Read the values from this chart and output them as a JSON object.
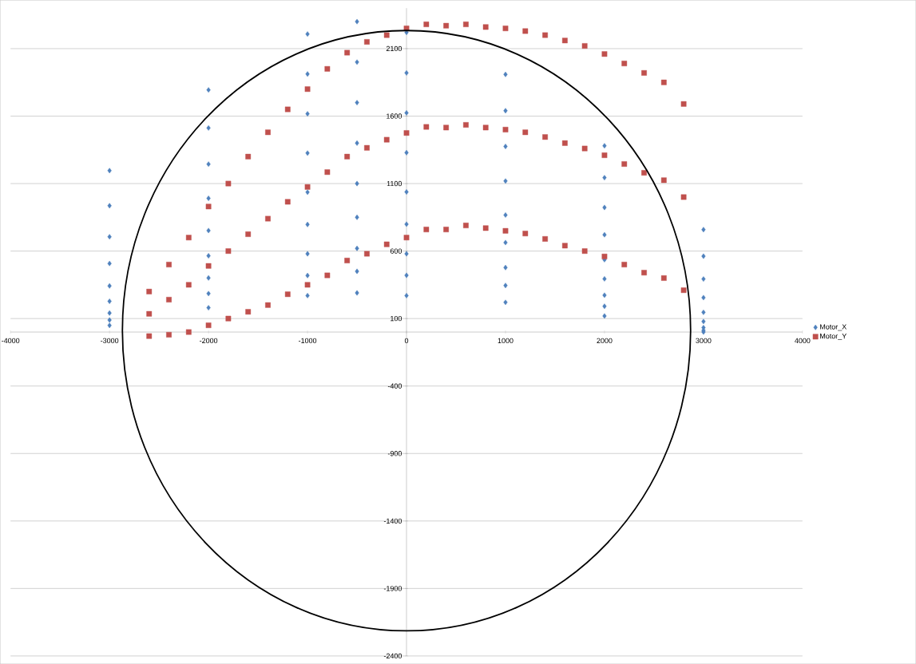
{
  "chart_data": {
    "type": "scatter",
    "xlim": [
      -4000,
      4000
    ],
    "ylim": [
      -2400,
      2400
    ],
    "xticks": [
      -4000,
      -3000,
      -2000,
      -1000,
      0,
      1000,
      2000,
      3000,
      4000
    ],
    "yticks": [
      -2400,
      -1900,
      -1400,
      -900,
      -400,
      100,
      600,
      1100,
      1600,
      2100
    ],
    "grid": "y",
    "legend": "right",
    "series": [
      {
        "name": "Motor_X",
        "color": "#4f81bd",
        "marker": "diamond",
        "x": [
          -3000,
          -2000,
          -1000,
          -500,
          0,
          1000,
          2000,
          3000,
          -3000,
          -2000,
          -1000,
          -500,
          0,
          1000,
          2000,
          3000,
          -3000,
          -2000,
          -1000,
          -500,
          0,
          1000,
          2000,
          3000,
          -3000,
          -2000,
          -1000,
          -500,
          0,
          1000,
          2000,
          3000,
          -3000,
          -2000,
          -1000,
          -500,
          0,
          1000,
          2000,
          3000,
          -3000,
          -2000,
          -1000,
          -500,
          0,
          1000,
          2000,
          3000,
          -3000,
          -2000,
          -1000,
          -500,
          0,
          1000,
          2000,
          3000,
          -3000,
          -2000,
          -1000,
          -500,
          0,
          1000,
          2000,
          3000,
          -3000,
          -2000,
          -1000,
          -500,
          0,
          1000,
          2000,
          3000
        ],
        "values": [
          49,
          180,
          270,
          290,
          270,
          220,
          119,
          0,
          89,
          285,
          419,
          450,
          420,
          345,
          191,
          12,
          141,
          401,
          580,
          620,
          580,
          478,
          273,
          33,
          228,
          565,
          797,
          850,
          799,
          663,
          394,
          78,
          342,
          752,
          1036,
          1100,
          1038,
          867,
          536,
          146,
          508,
          991,
          1326,
          1400,
          1329,
          1119,
          721,
          255,
          706,
          1244,
          1617,
          1700,
          1624,
          1375,
          923,
          393,
          936,
          1512,
          1912,
          2000,
          1920,
          1640,
          1144,
          562,
          1196,
          1794,
          2208,
          2300,
          2220,
          1909,
          1380,
          759
        ]
      },
      {
        "name": "Motor_Y",
        "color": "#c0504d",
        "marker": "square",
        "x": [
          -2600,
          -2400,
          -2200,
          -2000,
          -1800,
          -1600,
          -1400,
          -1200,
          -1000,
          -800,
          -600,
          -400,
          -200,
          0,
          200,
          400,
          600,
          800,
          1000,
          1200,
          1400,
          1600,
          1800,
          2000,
          2200,
          2400,
          2600,
          2800,
          -2600,
          -2400,
          -2200,
          -2000,
          -1800,
          -1600,
          -1400,
          -1200,
          -1000,
          -800,
          -600,
          -400,
          -200,
          0,
          200,
          400,
          600,
          800,
          1000,
          1200,
          1400,
          1600,
          1800,
          2000,
          2200,
          2400,
          2600,
          2800,
          -2600,
          -2400,
          -2200,
          -2000,
          -1800,
          -1600,
          -1400,
          -1200,
          -1000,
          -800,
          -600,
          -400,
          -200,
          0,
          200,
          400,
          600,
          800,
          1000,
          1200,
          1400,
          1600,
          1800,
          2000,
          2200,
          2400,
          2600,
          2800
        ],
        "values": [
          -30,
          -20,
          0,
          50,
          100,
          150,
          200,
          280,
          350,
          420,
          530,
          580,
          650,
          700,
          760,
          760,
          790,
          770,
          750,
          730,
          690,
          640,
          600,
          560,
          500,
          440,
          400,
          310,
          135,
          240,
          350,
          490,
          600,
          725,
          840,
          965,
          1075,
          1185,
          1300,
          1365,
          1425,
          1475,
          1520,
          1515,
          1535,
          1515,
          1500,
          1480,
          1445,
          1400,
          1360,
          1310,
          1245,
          1180,
          1125,
          1000,
          300,
          500,
          700,
          930,
          1100,
          1300,
          1480,
          1650,
          1800,
          1950,
          2070,
          2150,
          2200,
          2250,
          2280,
          2270,
          2280,
          2260,
          2250,
          2230,
          2200,
          2160,
          2120,
          2060,
          1990,
          1920,
          1850,
          1690
        ]
      }
    ]
  }
}
